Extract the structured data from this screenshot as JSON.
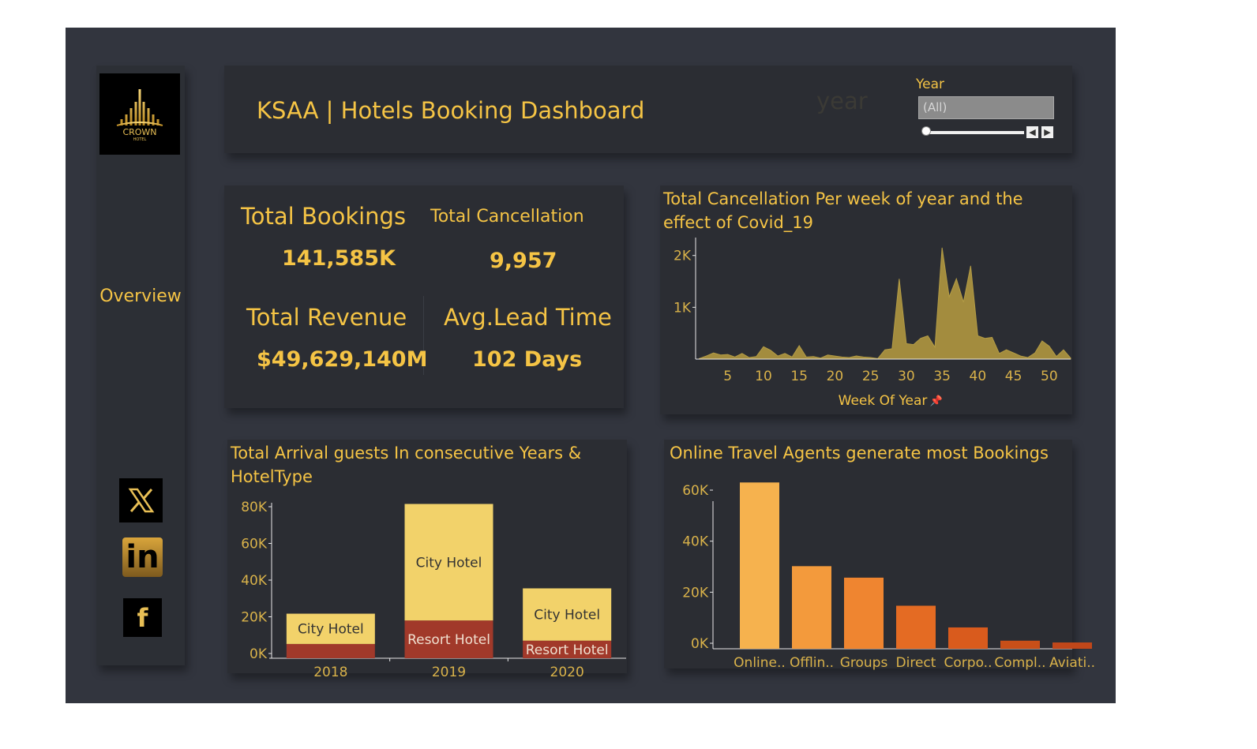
{
  "colors": {
    "accent": "#f5c445",
    "city_hotel": "#f2d26a",
    "resort_hotel": "#a1392a",
    "area_fill": "#a38c3e",
    "bars": [
      "#f6b24e",
      "#f39a3c",
      "#ef8530",
      "#e46b23",
      "#d95b1d",
      "#c94f18",
      "#c0471a"
    ]
  },
  "sidebar": {
    "logo_text": "CROWN",
    "logo_subtext": "HOTEL",
    "overview_label": "Overview",
    "social": [
      {
        "name": "x",
        "glyph": "𝕏"
      },
      {
        "name": "linkedin",
        "glyph": "in"
      },
      {
        "name": "facebook",
        "glyph": "f"
      }
    ]
  },
  "header": {
    "title": "KSAA | Hotels Booking Dashboard",
    "ghost_text": "year",
    "filter": {
      "label": "Year",
      "selected": "(All)"
    }
  },
  "kpis": {
    "bookings_label": "Total Bookings",
    "bookings_value": "141,585K",
    "cancellation_label": "Total Cancellation",
    "cancellation_value": "9,957",
    "revenue_label": "Total Revenue",
    "revenue_value": "$49,629,140M",
    "lead_label": "Avg.Lead Time",
    "lead_value": "102 Days"
  },
  "chart_data": [
    {
      "type": "area",
      "title": "Total Cancellation Per week of year and the effect of Covid_19",
      "xlabel": "Week Of Year",
      "ylabel": "",
      "x": [
        1,
        2,
        3,
        4,
        5,
        6,
        7,
        8,
        9,
        10,
        11,
        12,
        13,
        14,
        15,
        16,
        17,
        18,
        19,
        20,
        21,
        22,
        23,
        24,
        25,
        26,
        27,
        28,
        29,
        30,
        31,
        32,
        33,
        34,
        35,
        36,
        37,
        38,
        39,
        40,
        41,
        42,
        43,
        44,
        45,
        46,
        47,
        48,
        49,
        50,
        51,
        52,
        53
      ],
      "y": [
        10,
        60,
        120,
        80,
        90,
        40,
        110,
        30,
        50,
        240,
        170,
        60,
        110,
        40,
        260,
        40,
        50,
        20,
        80,
        60,
        40,
        30,
        60,
        40,
        30,
        10,
        180,
        200,
        1550,
        300,
        280,
        400,
        450,
        230,
        2150,
        1200,
        1550,
        1100,
        1800,
        450,
        400,
        420,
        110,
        180,
        120,
        60,
        30,
        120,
        350,
        250,
        50,
        180,
        20
      ],
      "xticks": [
        5,
        10,
        15,
        20,
        25,
        30,
        35,
        40,
        45,
        50
      ],
      "yticks": [
        {
          "value": 1000,
          "label": "1K"
        },
        {
          "value": 2000,
          "label": "2K"
        }
      ],
      "ylim": [
        0,
        2270
      ],
      "xlim": [
        0.5,
        53
      ]
    },
    {
      "type": "bar",
      "title": "Total Arrival guests In consecutive Years & HotelType",
      "categories": [
        "2018",
        "2019",
        "2020"
      ],
      "series": [
        {
          "name": "Resort Hotel",
          "values": [
            5200,
            18000,
            7000
          ]
        },
        {
          "name": "City Hotel",
          "values": [
            16500,
            63500,
            28500
          ]
        }
      ],
      "yticks": [
        {
          "value": 0,
          "label": "0K"
        },
        {
          "value": 20000,
          "label": "20K"
        },
        {
          "value": 40000,
          "label": "40K"
        },
        {
          "value": 60000,
          "label": "60K"
        },
        {
          "value": 80000,
          "label": "80K"
        }
      ],
      "ylim": [
        -5000,
        86000
      ]
    },
    {
      "type": "bar",
      "title": "Online Travel Agents generate most Bookings",
      "categories": [
        "Online..",
        "Offlin..",
        "Groups",
        "Direct",
        "Corpo..",
        "Compl..",
        "Aviati.."
      ],
      "values": [
        63000,
        30200,
        25700,
        14700,
        6200,
        1000,
        300
      ],
      "yticks": [
        {
          "value": 0,
          "label": "0K"
        },
        {
          "value": 20000,
          "label": "20K"
        },
        {
          "value": 40000,
          "label": "40K"
        },
        {
          "value": 60000,
          "label": "60K"
        }
      ],
      "ylim": [
        -3500,
        65000
      ]
    }
  ]
}
